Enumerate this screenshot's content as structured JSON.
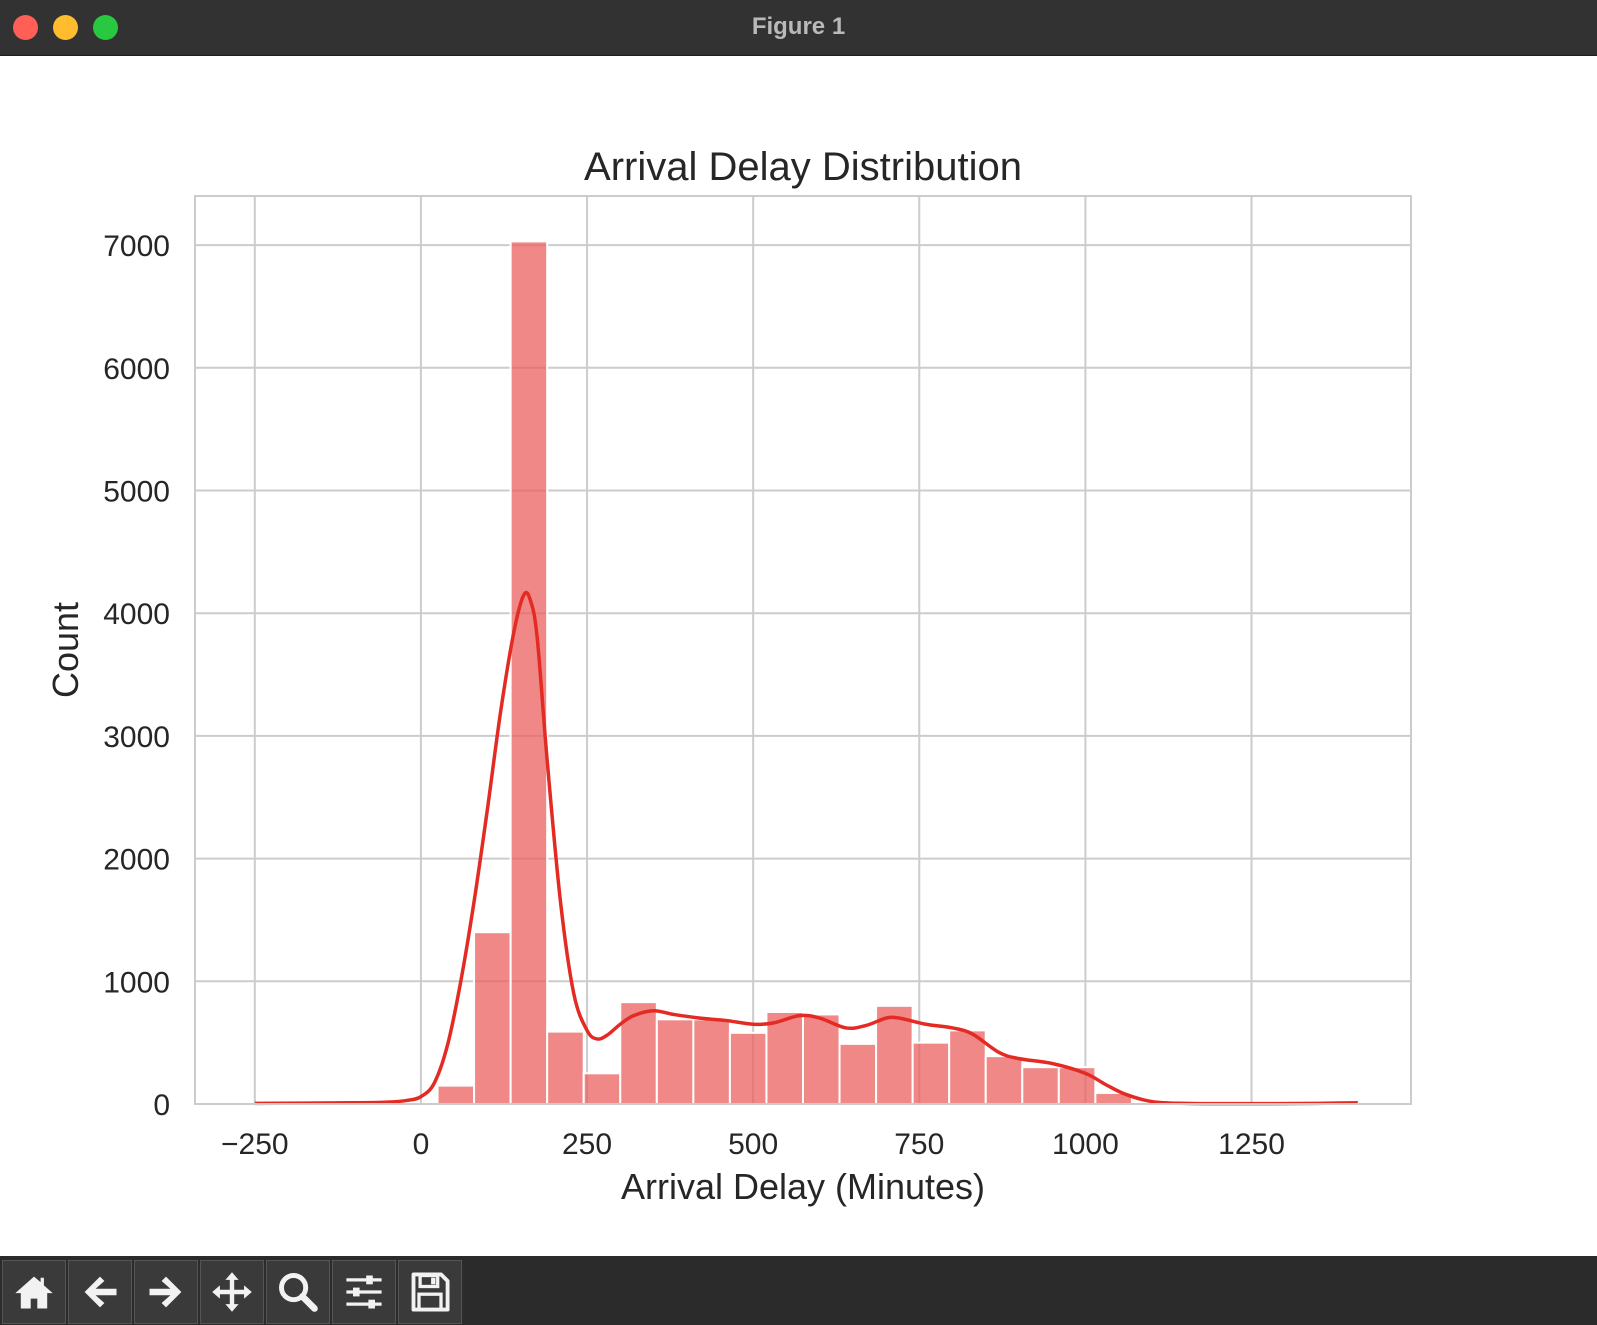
{
  "window": {
    "title": "Figure 1"
  },
  "toolbar": {
    "tools": [
      {
        "name": "home-icon"
      },
      {
        "name": "back-arrow-icon"
      },
      {
        "name": "forward-arrow-icon"
      },
      {
        "name": "pan-icon"
      },
      {
        "name": "zoom-icon"
      },
      {
        "name": "configure-subplots-icon"
      },
      {
        "name": "save-icon"
      }
    ]
  },
  "chart_data": {
    "type": "bar",
    "title": "Arrival Delay Distribution",
    "xlabel": "Arrival Delay (Minutes)",
    "ylabel": "Count",
    "xlim": [
      -340,
      1490
    ],
    "ylim": [
      0,
      7400
    ],
    "xticks": [
      -250,
      0,
      250,
      500,
      750,
      1000,
      1250
    ],
    "xtick_labels": [
      "−250",
      "0",
      "250",
      "500",
      "750",
      "1000",
      "1250"
    ],
    "yticks": [
      0,
      1000,
      2000,
      3000,
      4000,
      5000,
      6000,
      7000
    ],
    "ytick_labels": [
      "0",
      "1000",
      "2000",
      "3000",
      "4000",
      "5000",
      "6000",
      "7000"
    ],
    "grid": true,
    "bar_color": "#e9605f",
    "kde_color": "#e32b24",
    "bins": [
      {
        "left": 25,
        "right": 80,
        "count": 150
      },
      {
        "left": 80,
        "right": 135,
        "count": 1400
      },
      {
        "left": 135,
        "right": 190,
        "count": 7030
      },
      {
        "left": 190,
        "right": 245,
        "count": 590
      },
      {
        "left": 245,
        "right": 300,
        "count": 250
      },
      {
        "left": 300,
        "right": 355,
        "count": 830
      },
      {
        "left": 355,
        "right": 410,
        "count": 690
      },
      {
        "left": 410,
        "right": 465,
        "count": 690
      },
      {
        "left": 465,
        "right": 520,
        "count": 580
      },
      {
        "left": 520,
        "right": 575,
        "count": 750
      },
      {
        "left": 575,
        "right": 630,
        "count": 730
      },
      {
        "left": 630,
        "right": 685,
        "count": 490
      },
      {
        "left": 685,
        "right": 740,
        "count": 800
      },
      {
        "left": 740,
        "right": 795,
        "count": 500
      },
      {
        "left": 795,
        "right": 850,
        "count": 600
      },
      {
        "left": 850,
        "right": 905,
        "count": 390
      },
      {
        "left": 905,
        "right": 960,
        "count": 300
      },
      {
        "left": 960,
        "right": 1015,
        "count": 300
      },
      {
        "left": 1015,
        "right": 1070,
        "count": 90
      }
    ],
    "kde": {
      "x": [
        -250,
        -100,
        -50,
        -20,
        0,
        20,
        40,
        60,
        80,
        100,
        120,
        140,
        155,
        165,
        175,
        190,
        210,
        230,
        250,
        265,
        280,
        300,
        320,
        350,
        380,
        420,
        460,
        500,
        530,
        570,
        600,
        640,
        670,
        700,
        720,
        760,
        800,
        830,
        870,
        900,
        950,
        1000,
        1030,
        1060,
        1100,
        1150,
        1250,
        1350,
        1410
      ],
      "y": [
        5,
        10,
        15,
        30,
        60,
        170,
        480,
        1000,
        1650,
        2400,
        3200,
        3850,
        4150,
        4100,
        3800,
        2800,
        1650,
        900,
        600,
        530,
        560,
        650,
        720,
        760,
        730,
        700,
        680,
        650,
        660,
        720,
        700,
        620,
        640,
        700,
        700,
        650,
        620,
        570,
        420,
        370,
        330,
        250,
        160,
        80,
        20,
        5,
        3,
        5,
        10
      ]
    }
  }
}
